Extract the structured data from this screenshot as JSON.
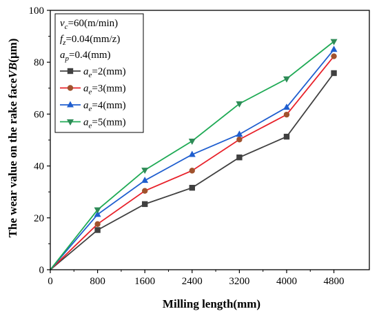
{
  "chart_data": {
    "type": "line",
    "title": "",
    "xlabel": "Milling length(mm)",
    "ylabel_prefix": "The wear value on the rake face",
    "ylabel_var": "VB",
    "ylabel_suffix": "(μm)",
    "x": [
      0,
      800,
      1600,
      2400,
      3200,
      4000,
      4800
    ],
    "x_ticks": [
      "0",
      "800",
      "1600",
      "2400",
      "3200",
      "4000",
      "4800"
    ],
    "xlim": [
      0,
      5400
    ],
    "ylim": [
      0,
      100
    ],
    "y_ticks": [
      0,
      20,
      40,
      60,
      80,
      100
    ],
    "grid": false,
    "legend_position": "top-left",
    "conditions": [
      {
        "sym": "v",
        "sub": "c",
        "val": "=60(m/min)"
      },
      {
        "sym": "f",
        "sub": "z",
        "val": "=0.04(mm/z)"
      },
      {
        "sym": "a",
        "sub": "p",
        "val": "=0.4(mm)"
      }
    ],
    "series": [
      {
        "sym": "a",
        "sub": "e",
        "val": "=2(mm)",
        "color": "#404040",
        "point_fill": "#404040",
        "marker": "square",
        "values": [
          0,
          15.3,
          25.3,
          31.6,
          43.3,
          51.3,
          75.8
        ]
      },
      {
        "sym": "a",
        "sub": "e",
        "val": "=3(mm)",
        "color": "#e8212a",
        "point_fill": "#a0522d",
        "marker": "circle",
        "values": [
          0,
          17.6,
          30.4,
          38.2,
          50.2,
          59.8,
          82.3
        ]
      },
      {
        "sym": "a",
        "sub": "e",
        "val": "=4(mm)",
        "color": "#1f5ecf",
        "point_fill": "#1f5ecf",
        "marker": "triangle-up",
        "values": [
          0,
          21.3,
          34.4,
          44.4,
          52.2,
          62.6,
          84.9
        ]
      },
      {
        "sym": "a",
        "sub": "e",
        "val": "=5(mm)",
        "color": "#1faa55",
        "point_fill": "#2e8b57",
        "marker": "triangle-down",
        "values": [
          0,
          23.1,
          38.4,
          49.6,
          64.0,
          73.6,
          88.0
        ]
      }
    ]
  }
}
